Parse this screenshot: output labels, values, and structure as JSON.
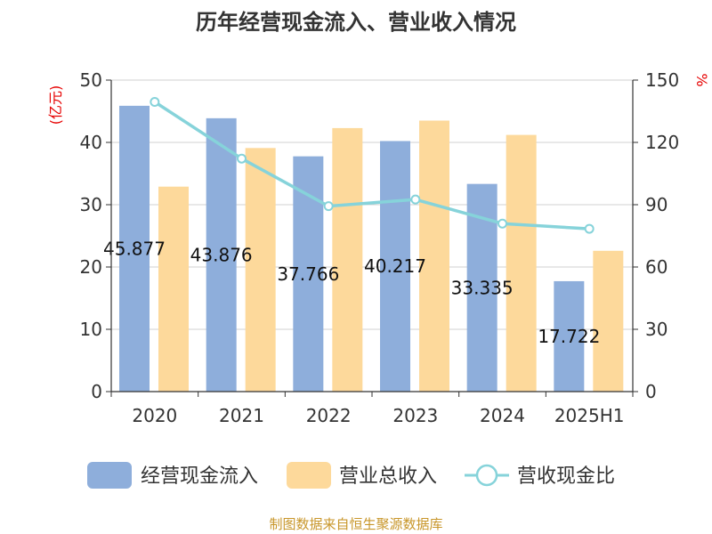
{
  "chart_data": {
    "type": "bar",
    "title": "历年经营现金流入、营业收入情况",
    "categories": [
      "2020",
      "2021",
      "2022",
      "2023",
      "2024",
      "2025H1"
    ],
    "y_left": {
      "label": "(亿元)",
      "min": 0,
      "max": 50,
      "ticks": [
        "0",
        "10",
        "20",
        "30",
        "40",
        "50"
      ]
    },
    "y_right": {
      "label": "%",
      "min": 0,
      "max": 150,
      "ticks": [
        "0",
        "30",
        "60",
        "90",
        "120",
        "150"
      ]
    },
    "series": [
      {
        "name": "经营现金流入",
        "type": "bar",
        "axis": "left",
        "color": "#8eaedb",
        "values": [
          45.877,
          43.876,
          37.766,
          40.217,
          33.335,
          17.722
        ],
        "labels": [
          "45.877",
          "43.876",
          "37.766",
          "40.217",
          "33.335",
          "17.722"
        ]
      },
      {
        "name": "营业总收入",
        "type": "bar",
        "axis": "left",
        "color": "#fdd99b",
        "values": [
          32.9,
          39.1,
          42.3,
          43.5,
          41.2,
          22.6
        ]
      },
      {
        "name": "营收现金比",
        "type": "line",
        "axis": "right",
        "color": "#86d3da",
        "values": [
          139.5,
          112.2,
          89.3,
          92.5,
          80.9,
          78.4
        ]
      }
    ],
    "grid": true,
    "legend_position": "bottom"
  },
  "source": "制图数据来自恒生聚源数据库"
}
